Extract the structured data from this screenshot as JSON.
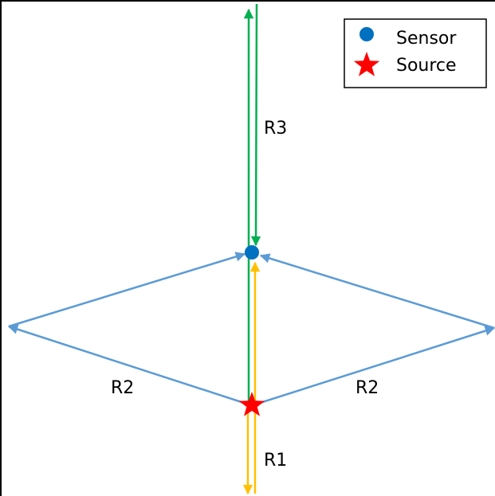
{
  "legend": {
    "sensor_label": "Sensor",
    "source_label": "Source"
  },
  "rays": {
    "r1": {
      "label": "R1",
      "color": "#FFC000"
    },
    "r2": {
      "label": "R2",
      "color": "#5B9BD5"
    },
    "r3": {
      "label": "R3",
      "color": "#00B050"
    }
  },
  "markers": {
    "sensor_color": "#0070C0",
    "source_color": "#FF0000"
  },
  "frame": {
    "border_color": "#000000"
  }
}
